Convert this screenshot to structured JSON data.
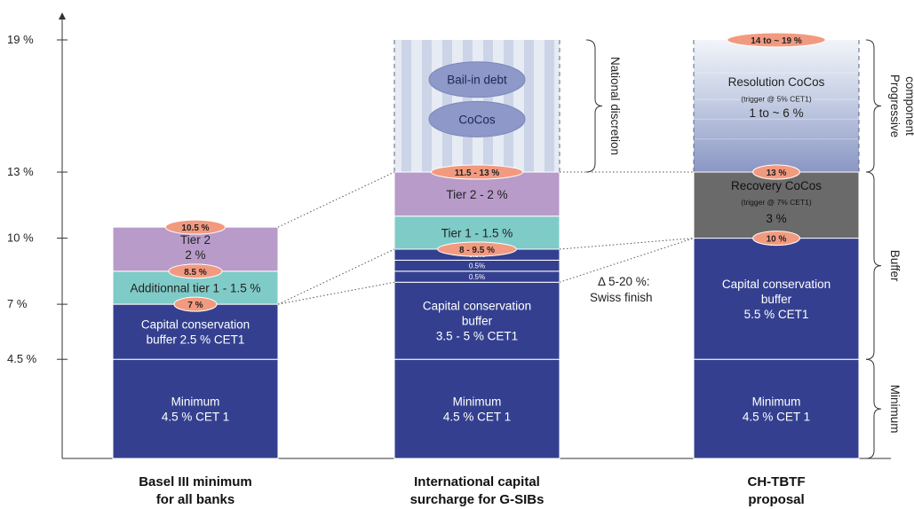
{
  "chart_data": {
    "type": "bar",
    "y_ticks": [
      {
        "value": 4.5,
        "label": "4.5 %"
      },
      {
        "value": 7,
        "label": "7 %"
      },
      {
        "value": 10,
        "label": "10 %"
      },
      {
        "value": 13,
        "label": "13 %"
      },
      {
        "value": 19,
        "label": "19 %"
      }
    ],
    "ylim": [
      0,
      20
    ],
    "categories": [
      {
        "line1": "Basel III minimum",
        "line2": "for all banks"
      },
      {
        "line1": "International capital",
        "line2": "surcharge for G-SIBs"
      },
      {
        "line1": "CH-TBTF",
        "line2": "proposal"
      }
    ],
    "colors": {
      "navy": "#34408f",
      "purple": "#b89bc9",
      "teal": "#7fcbc8",
      "gray": "#6a6a6a",
      "salmon": "#f29a80",
      "lavender": "#8e99c9",
      "stripe_light": "#e6ebf4",
      "stripe_dark": "#c5cfe4"
    },
    "segments": [
      {
        "bar": 0,
        "from": 0,
        "to": 4.5,
        "color": "navy",
        "lines": [
          "Minimum",
          "4.5 % CET 1"
        ]
      },
      {
        "bar": 0,
        "from": 4.5,
        "to": 7,
        "color": "navy",
        "lines": [
          "Capital conservation",
          "buffer 2.5 % CET1"
        ]
      },
      {
        "bar": 0,
        "from": 7,
        "to": 8.5,
        "color": "teal",
        "lines": [
          "Additionnal tier 1  - 1.5 %"
        ]
      },
      {
        "bar": 0,
        "from": 8.5,
        "to": 10.5,
        "color": "purple",
        "lines": [
          "Tier 2",
          "2 %"
        ]
      },
      {
        "bar": 1,
        "from": 0,
        "to": 4.5,
        "color": "navy",
        "lines": [
          "Minimum",
          "4.5 % CET 1"
        ]
      },
      {
        "bar": 1,
        "from": 4.5,
        "to": 8,
        "color": "navy",
        "lines": [
          "Capital conservation",
          "buffer",
          "3.5 - 5 % CET1"
        ]
      },
      {
        "bar": 1,
        "from": 8,
        "to": 8.5,
        "color": "navy",
        "small": true,
        "lines": [
          "0.5%"
        ]
      },
      {
        "bar": 1,
        "from": 8.5,
        "to": 9,
        "color": "navy",
        "small": true,
        "lines": [
          "0.5%"
        ]
      },
      {
        "bar": 1,
        "from": 9,
        "to": 9.5,
        "color": "navy",
        "small": true,
        "lines": [
          "0.5%"
        ]
      },
      {
        "bar": 1,
        "from": 9.5,
        "to": 11,
        "color": "teal",
        "lines": [
          "Tier 1 - 1.5 %"
        ]
      },
      {
        "bar": 1,
        "from": 11,
        "to": 13,
        "color": "purple",
        "lines": [
          "Tier 2 - 2 %"
        ]
      },
      {
        "bar": 2,
        "from": 0,
        "to": 4.5,
        "color": "navy",
        "lines": [
          "Minimum",
          "4.5 % CET 1"
        ]
      },
      {
        "bar": 2,
        "from": 4.5,
        "to": 10,
        "color": "navy",
        "lines": [
          "Capital conservation",
          "buffer",
          "5.5 % CET1"
        ]
      },
      {
        "bar": 2,
        "from": 10,
        "to": 13,
        "color": "gray",
        "lines": [
          "Recovery CoCos",
          "(trigger @ 7% CET1)",
          "3 %"
        ]
      }
    ],
    "gradient_top": {
      "bar": 2,
      "from": 13,
      "to": 19,
      "title": "Resolution CoCos",
      "trigger": "(trigger @ 5% CET1)",
      "range": "1 to ~ 6 %"
    },
    "striped_top": {
      "bar": 1,
      "from": 13,
      "to": 19
    },
    "ellipses": [
      {
        "bar": 1,
        "value": 17.2,
        "label": "Bail-in debt"
      },
      {
        "bar": 1,
        "value": 15.4,
        "label": "CoCos"
      }
    ],
    "markers": [
      {
        "bar": 0,
        "value": 10.5,
        "label": "10.5 %"
      },
      {
        "bar": 0,
        "value": 8.5,
        "label": "8.5 %"
      },
      {
        "bar": 0,
        "value": 7,
        "label": "7 %"
      },
      {
        "bar": 1,
        "value": 13,
        "label": "11.5 - 13 %"
      },
      {
        "bar": 1,
        "value": 9.5,
        "label": "8 - 9.5 %"
      },
      {
        "bar": 2,
        "value": 19,
        "label": "14 to ~ 19 %"
      },
      {
        "bar": 2,
        "value": 13,
        "label": "13 %"
      },
      {
        "bar": 2,
        "value": 10,
        "label": "10 %"
      }
    ],
    "connectors": [
      {
        "from_bar": 0,
        "from_value": 10.5,
        "to_bar": 1,
        "to_value": 13
      },
      {
        "from_bar": 0,
        "from_value": 7,
        "to_bar": 1,
        "to_value": 9.5
      },
      {
        "from_bar": 0,
        "from_value": 7,
        "to_bar": 1,
        "to_value": 8
      },
      {
        "from_bar": 1,
        "from_value": 13,
        "to_bar": 2,
        "to_value": 13
      },
      {
        "from_bar": 1,
        "from_value": 9.5,
        "to_bar": 2,
        "to_value": 10
      },
      {
        "from_bar": 1,
        "from_value": 8,
        "to_bar": 2,
        "to_value": 10
      }
    ],
    "swiss_finish": [
      "Δ 5-20 %:",
      "Swiss finish"
    ],
    "right_braces": [
      {
        "from": 13,
        "to": 19,
        "label": [
          "Progressive",
          "component"
        ]
      },
      {
        "from": 4.5,
        "to": 13,
        "label": [
          "Buffer"
        ]
      },
      {
        "from": 0,
        "to": 4.5,
        "label": [
          "Minimum"
        ]
      }
    ],
    "national_brace": {
      "bar": 1,
      "from": 13,
      "to": 19,
      "label": "National discretion"
    }
  }
}
